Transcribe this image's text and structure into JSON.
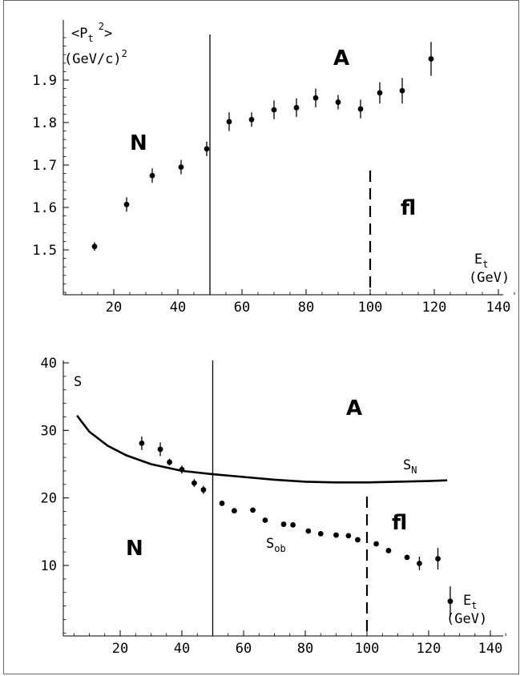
{
  "chart_data": [
    {
      "type": "scatter",
      "title": "",
      "ylabel_line1_main": "<P",
      "ylabel_line1_sub": "t",
      "ylabel_line1_sup": "2",
      "ylabel_line1_end": ">",
      "ylabel_line2_main": "(GeV/c)",
      "ylabel_line2_sup": "2",
      "xlabel_main": "E",
      "xlabel_sub": "t",
      "xlabel_unit": "(GeV)",
      "xlim": [
        0,
        150
      ],
      "ylim": [
        1.4,
        2.0
      ],
      "x_ticks": [
        20,
        40,
        60,
        80,
        100,
        120,
        140
      ],
      "x_tick_labels": [
        "20",
        "40",
        "60",
        "80",
        "100",
        "120",
        "140"
      ],
      "y_ticks": [
        1.5,
        1.6,
        1.7,
        1.8,
        1.9
      ],
      "y_tick_labels": [
        "1.5",
        "1.6",
        "1.7",
        "1.8",
        "1.9"
      ],
      "regions": [
        "N",
        "A",
        "fl"
      ],
      "solid_vline_x": 50,
      "dashed_vline_x": 100,
      "series": [
        {
          "points": [
            {
              "x": 14,
              "y": 1.508,
              "err": 0.01
            },
            {
              "x": 24,
              "y": 1.607,
              "err": 0.017
            },
            {
              "x": 32,
              "y": 1.675,
              "err": 0.017
            },
            {
              "x": 41,
              "y": 1.695,
              "err": 0.017
            },
            {
              "x": 49,
              "y": 1.738,
              "err": 0.017
            },
            {
              "x": 56,
              "y": 1.802,
              "err": 0.022
            },
            {
              "x": 63,
              "y": 1.807,
              "err": 0.017
            },
            {
              "x": 70,
              "y": 1.83,
              "err": 0.022
            },
            {
              "x": 77,
              "y": 1.835,
              "err": 0.022
            },
            {
              "x": 83,
              "y": 1.858,
              "err": 0.022
            },
            {
              "x": 90,
              "y": 1.848,
              "err": 0.017
            },
            {
              "x": 97,
              "y": 1.832,
              "err": 0.022
            },
            {
              "x": 103,
              "y": 1.87,
              "err": 0.025
            },
            {
              "x": 110,
              "y": 1.875,
              "err": 0.03
            },
            {
              "x": 119,
              "y": 1.95,
              "err": 0.04
            }
          ]
        }
      ]
    },
    {
      "type": "scatter",
      "title": "",
      "ylabel": "S",
      "xlabel_main": "E",
      "xlabel_sub": "t",
      "xlabel_unit": "(GeV)",
      "xlim": [
        0,
        150
      ],
      "ylim": [
        0,
        40
      ],
      "x_ticks": [
        20,
        40,
        60,
        80,
        100,
        120,
        140
      ],
      "x_tick_labels": [
        "20",
        "40",
        "60",
        "80",
        "100",
        "120",
        "140"
      ],
      "y_ticks": [
        10,
        20,
        30,
        40
      ],
      "y_tick_labels": [
        "10",
        "20",
        "30",
        "40"
      ],
      "regions": [
        "N",
        "A",
        "fl"
      ],
      "solid_vline_x": 50,
      "dashed_vline_x": 100,
      "curve_label_main": "S",
      "curve_label_sub": "N",
      "points_label_main": "S",
      "points_label_sub": "ob",
      "series": [
        {
          "kind": "line",
          "points": [
            {
              "x": 6,
              "y": 32.2
            },
            {
              "x": 10,
              "y": 29.8
            },
            {
              "x": 16,
              "y": 27.7
            },
            {
              "x": 22,
              "y": 26.3
            },
            {
              "x": 30,
              "y": 25.0
            },
            {
              "x": 40,
              "y": 24.0
            },
            {
              "x": 50,
              "y": 23.5
            },
            {
              "x": 60,
              "y": 23.1
            },
            {
              "x": 70,
              "y": 22.7
            },
            {
              "x": 80,
              "y": 22.4
            },
            {
              "x": 90,
              "y": 22.3
            },
            {
              "x": 100,
              "y": 22.3
            },
            {
              "x": 110,
              "y": 22.4
            },
            {
              "x": 120,
              "y": 22.5
            },
            {
              "x": 126,
              "y": 22.6
            }
          ]
        },
        {
          "kind": "points",
          "points": [
            {
              "x": 27,
              "y": 28.1,
              "err": 1.0
            },
            {
              "x": 33,
              "y": 27.2,
              "err": 1.0
            },
            {
              "x": 36,
              "y": 25.3,
              "err": 0.5
            },
            {
              "x": 40,
              "y": 24.2,
              "err": 0.6
            },
            {
              "x": 44,
              "y": 22.2,
              "err": 0.6
            },
            {
              "x": 47,
              "y": 21.2,
              "err": 0.6
            },
            {
              "x": 53,
              "y": 19.2,
              "err": 0
            },
            {
              "x": 57,
              "y": 18.1,
              "err": 0
            },
            {
              "x": 63,
              "y": 18.2,
              "err": 0
            },
            {
              "x": 67,
              "y": 16.7,
              "err": 0
            },
            {
              "x": 73,
              "y": 16.1,
              "err": 0
            },
            {
              "x": 76,
              "y": 16.0,
              "err": 0
            },
            {
              "x": 81,
              "y": 15.1,
              "err": 0
            },
            {
              "x": 85,
              "y": 14.7,
              "err": 0
            },
            {
              "x": 90,
              "y": 14.5,
              "err": 0
            },
            {
              "x": 94,
              "y": 14.4,
              "err": 0
            },
            {
              "x": 97,
              "y": 13.8,
              "err": 0
            },
            {
              "x": 103,
              "y": 13.2,
              "err": 0
            },
            {
              "x": 107,
              "y": 12.2,
              "err": 0
            },
            {
              "x": 113,
              "y": 11.2,
              "err": 0
            },
            {
              "x": 117,
              "y": 10.3,
              "err": 1.0
            },
            {
              "x": 123,
              "y": 11.0,
              "err": 1.6
            },
            {
              "x": 127,
              "y": 4.7,
              "err": 2.2
            }
          ]
        }
      ]
    }
  ]
}
